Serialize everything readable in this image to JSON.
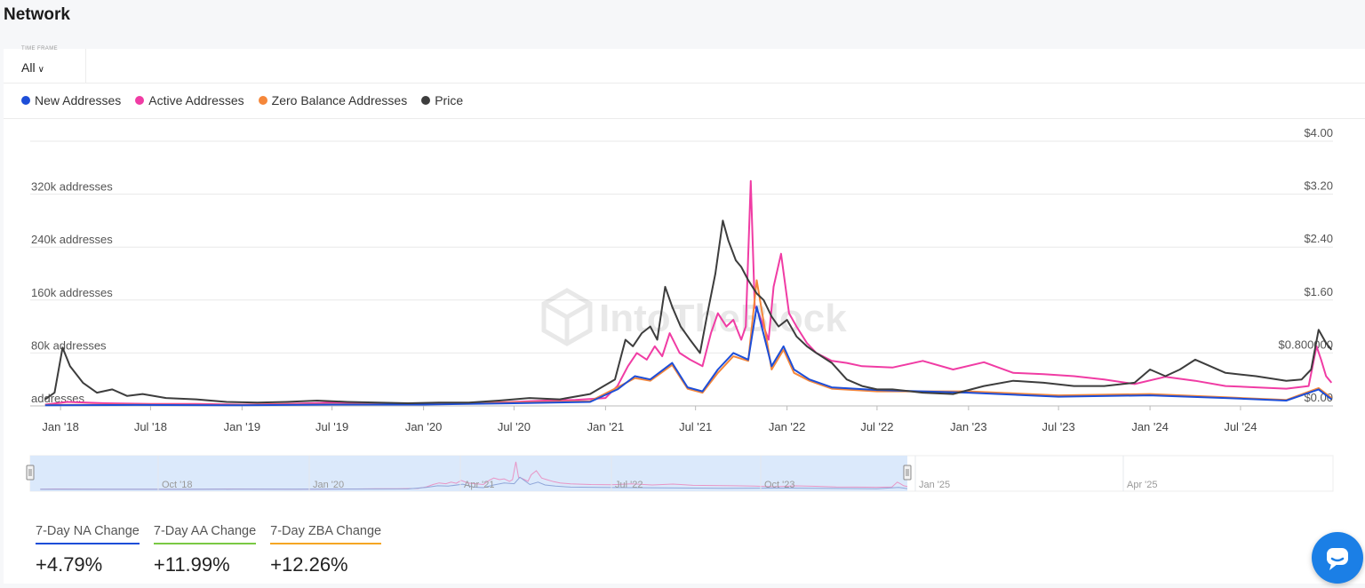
{
  "page": {
    "title": "Network"
  },
  "time_frame": {
    "label": "TIME FRAME",
    "value": "All"
  },
  "legend": [
    {
      "label": "New Addresses",
      "color": "#1d4ed8"
    },
    {
      "label": "Active Addresses",
      "color": "#f03ca4"
    },
    {
      "label": "Zero Balance Addresses",
      "color": "#f5873a"
    },
    {
      "label": "Price",
      "color": "#3d3d3d"
    }
  ],
  "watermark": "IntoTheBlock",
  "chart_data": {
    "type": "line",
    "x_tick_labels": [
      "Jan '18",
      "Jul '18",
      "Jan '19",
      "Jul '19",
      "Jan '20",
      "Jul '20",
      "Jan '21",
      "Jul '21",
      "Jan '22",
      "Jul '22",
      "Jan '23",
      "Jul '23",
      "Jan '24",
      "Jul '24"
    ],
    "y_left": {
      "ticks": [
        "addresses",
        "80k addresses",
        "160k addresses",
        "240k addresses",
        "320k addresses"
      ],
      "ylim": [
        0,
        400000
      ]
    },
    "y_right": {
      "ticks": [
        "$0.00",
        "$0.800000",
        "$1.60",
        "$2.40",
        "$3.20",
        "$4.00"
      ],
      "ylim": [
        0,
        4.0
      ]
    },
    "grid": true,
    "series": [
      {
        "name": "Price",
        "color": "#3d3d3d",
        "axis": "right",
        "x": [
          "2017-12-01",
          "2017-12-20",
          "2018-01-05",
          "2018-01-20",
          "2018-02-15",
          "2018-03-15",
          "2018-04-15",
          "2018-05-15",
          "2018-06-15",
          "2018-08-01",
          "2018-10-01",
          "2018-12-01",
          "2019-02-01",
          "2019-04-01",
          "2019-06-01",
          "2019-08-01",
          "2019-10-01",
          "2019-12-01",
          "2020-02-01",
          "2020-04-01",
          "2020-06-01",
          "2020-08-01",
          "2020-10-01",
          "2020-12-01",
          "2021-01-20",
          "2021-02-10",
          "2021-02-25",
          "2021-03-15",
          "2021-04-01",
          "2021-04-15",
          "2021-05-01",
          "2021-05-15",
          "2021-06-01",
          "2021-06-20",
          "2021-07-10",
          "2021-07-25",
          "2021-08-10",
          "2021-08-25",
          "2021-09-05",
          "2021-09-20",
          "2021-10-01",
          "2021-10-15",
          "2021-11-01",
          "2021-11-15",
          "2021-12-01",
          "2021-12-15",
          "2022-01-01",
          "2022-01-20",
          "2022-02-10",
          "2022-03-01",
          "2022-04-01",
          "2022-05-01",
          "2022-06-01",
          "2022-07-01",
          "2022-08-01",
          "2022-10-01",
          "2022-12-01",
          "2023-02-01",
          "2023-04-01",
          "2023-06-01",
          "2023-08-01",
          "2023-10-01",
          "2023-12-01",
          "2024-01-01",
          "2024-02-01",
          "2024-03-01",
          "2024-04-01",
          "2024-06-01",
          "2024-08-01",
          "2024-10-01",
          "2024-11-01",
          "2024-11-20",
          "2024-12-05",
          "2024-12-20",
          "2024-12-31"
        ],
        "y": [
          0.1,
          0.2,
          0.88,
          0.6,
          0.35,
          0.2,
          0.25,
          0.15,
          0.18,
          0.12,
          0.1,
          0.06,
          0.05,
          0.06,
          0.08,
          0.06,
          0.05,
          0.04,
          0.05,
          0.05,
          0.08,
          0.12,
          0.1,
          0.18,
          0.4,
          1.0,
          0.9,
          1.1,
          1.2,
          1.0,
          1.8,
          1.5,
          1.2,
          1.0,
          0.8,
          1.4,
          2.0,
          2.8,
          2.5,
          2.2,
          2.1,
          1.9,
          1.7,
          1.6,
          1.35,
          1.2,
          1.3,
          1.05,
          0.9,
          0.8,
          0.65,
          0.4,
          0.3,
          0.25,
          0.25,
          0.2,
          0.18,
          0.3,
          0.38,
          0.35,
          0.3,
          0.3,
          0.35,
          0.55,
          0.45,
          0.55,
          0.7,
          0.5,
          0.45,
          0.38,
          0.4,
          0.55,
          1.15,
          0.95,
          0.85
        ]
      },
      {
        "name": "Active Addresses",
        "color": "#f03ca4",
        "axis": "left",
        "x": [
          "2017-12-01",
          "2018-01-15",
          "2018-04-01",
          "2018-07-01",
          "2018-10-01",
          "2019-01-01",
          "2019-04-01",
          "2019-07-01",
          "2019-10-01",
          "2020-01-01",
          "2020-04-01",
          "2020-07-01",
          "2020-09-01",
          "2020-11-01",
          "2021-01-01",
          "2021-01-25",
          "2021-02-15",
          "2021-03-05",
          "2021-03-25",
          "2021-04-10",
          "2021-04-25",
          "2021-05-10",
          "2021-05-30",
          "2021-06-20",
          "2021-07-15",
          "2021-08-01",
          "2021-08-15",
          "2021-09-01",
          "2021-09-15",
          "2021-10-01",
          "2021-10-10",
          "2021-10-20",
          "2021-10-28",
          "2021-11-05",
          "2021-11-15",
          "2021-11-25",
          "2021-12-05",
          "2021-12-20",
          "2022-01-05",
          "2022-01-20",
          "2022-02-10",
          "2022-03-01",
          "2022-04-01",
          "2022-05-01",
          "2022-06-01",
          "2022-08-01",
          "2022-10-01",
          "2022-12-01",
          "2023-02-01",
          "2023-04-01",
          "2023-06-01",
          "2023-08-01",
          "2023-10-01",
          "2023-12-01",
          "2024-02-01",
          "2024-04-01",
          "2024-06-01",
          "2024-08-01",
          "2024-10-01",
          "2024-11-15",
          "2024-12-01",
          "2024-12-10",
          "2024-12-20",
          "2024-12-31"
        ],
        "y": [
          2000,
          6000,
          4000,
          3000,
          3000,
          2000,
          3000,
          5000,
          4000,
          3000,
          4000,
          6000,
          8000,
          9000,
          12000,
          30000,
          60000,
          80000,
          70000,
          90000,
          75000,
          110000,
          80000,
          70000,
          60000,
          110000,
          140000,
          120000,
          130000,
          100000,
          120000,
          340000,
          150000,
          140000,
          120000,
          100000,
          180000,
          230000,
          140000,
          120000,
          95000,
          80000,
          68000,
          65000,
          60000,
          58000,
          68000,
          55000,
          66000,
          50000,
          48000,
          45000,
          40000,
          33000,
          44000,
          38000,
          30000,
          28000,
          26000,
          30000,
          90000,
          70000,
          45000,
          35000
        ]
      },
      {
        "name": "New Addresses",
        "color": "#1d4ed8",
        "axis": "left",
        "x": [
          "2017-12-01",
          "2018-06-01",
          "2019-01-01",
          "2019-07-01",
          "2020-01-01",
          "2020-07-01",
          "2020-12-01",
          "2021-01-25",
          "2021-03-01",
          "2021-04-01",
          "2021-05-15",
          "2021-06-15",
          "2021-07-15",
          "2021-08-15",
          "2021-09-15",
          "2021-10-15",
          "2021-11-01",
          "2021-12-01",
          "2021-12-25",
          "2022-01-15",
          "2022-02-15",
          "2022-04-01",
          "2022-07-01",
          "2023-01-01",
          "2023-07-01",
          "2024-01-01",
          "2024-06-01",
          "2024-10-01",
          "2024-12-05",
          "2024-12-31"
        ],
        "y": [
          1000,
          1500,
          1000,
          2000,
          2000,
          4000,
          6000,
          25000,
          45000,
          40000,
          65000,
          28000,
          22000,
          55000,
          80000,
          70000,
          150000,
          60000,
          90000,
          55000,
          40000,
          28000,
          24000,
          20000,
          14000,
          16000,
          12000,
          8000,
          25000,
          10000
        ]
      },
      {
        "name": "Zero Balance Addresses",
        "color": "#f5873a",
        "axis": "left",
        "x": [
          "2017-12-01",
          "2018-06-01",
          "2019-01-01",
          "2019-07-01",
          "2020-01-01",
          "2020-07-01",
          "2020-12-01",
          "2021-01-25",
          "2021-03-01",
          "2021-04-01",
          "2021-05-15",
          "2021-06-15",
          "2021-07-15",
          "2021-08-15",
          "2021-09-15",
          "2021-10-15",
          "2021-11-01",
          "2021-12-01",
          "2021-12-25",
          "2022-01-15",
          "2022-02-15",
          "2022-04-01",
          "2022-07-01",
          "2023-01-01",
          "2023-07-01",
          "2024-01-01",
          "2024-06-01",
          "2024-10-01",
          "2024-12-05",
          "2024-12-31"
        ],
        "y": [
          1500,
          2000,
          1500,
          2500,
          2500,
          5000,
          7000,
          28000,
          42000,
          38000,
          62000,
          26000,
          20000,
          50000,
          75000,
          68000,
          190000,
          55000,
          85000,
          50000,
          38000,
          26000,
          22000,
          22000,
          16000,
          18000,
          13000,
          9000,
          27000,
          12000
        ]
      }
    ]
  },
  "navigator": {
    "tick_labels": [
      "Oct '18",
      "Jan '20",
      "Apr '21",
      "Jul '22",
      "Oct '23",
      "Jan '25",
      "Apr '25"
    ]
  },
  "stats": [
    {
      "label": "7-Day NA Change",
      "value": "+4.79%",
      "color": "#1d4ed8"
    },
    {
      "label": "7-Day AA Change",
      "value": "+11.99%",
      "color": "#7ac943"
    },
    {
      "label": "7-Day ZBA Change",
      "value": "+12.26%",
      "color": "#f5a623"
    }
  ],
  "chat": {
    "icon": "chat-bubble-icon"
  }
}
